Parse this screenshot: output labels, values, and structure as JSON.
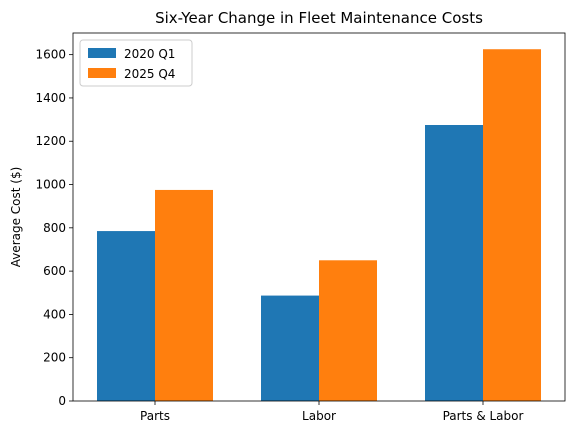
{
  "chart_data": {
    "type": "bar",
    "title": "Six-Year Change in Fleet Maintenance Costs",
    "xlabel": "",
    "ylabel": "Average Cost ($)",
    "categories": [
      "Parts",
      "Labor",
      "Parts & Labor"
    ],
    "series": [
      {
        "name": "2020 Q1",
        "color": "#1f77b4",
        "values": [
          785,
          487,
          1275
        ]
      },
      {
        "name": "2025 Q4",
        "color": "#ff7f0e",
        "values": [
          975,
          650,
          1625
        ]
      }
    ],
    "ylim": [
      0,
      1700
    ],
    "yticks": [
      0,
      200,
      400,
      600,
      800,
      1000,
      1200,
      1400,
      1600
    ],
    "legend": "top-left",
    "grid": false
  }
}
